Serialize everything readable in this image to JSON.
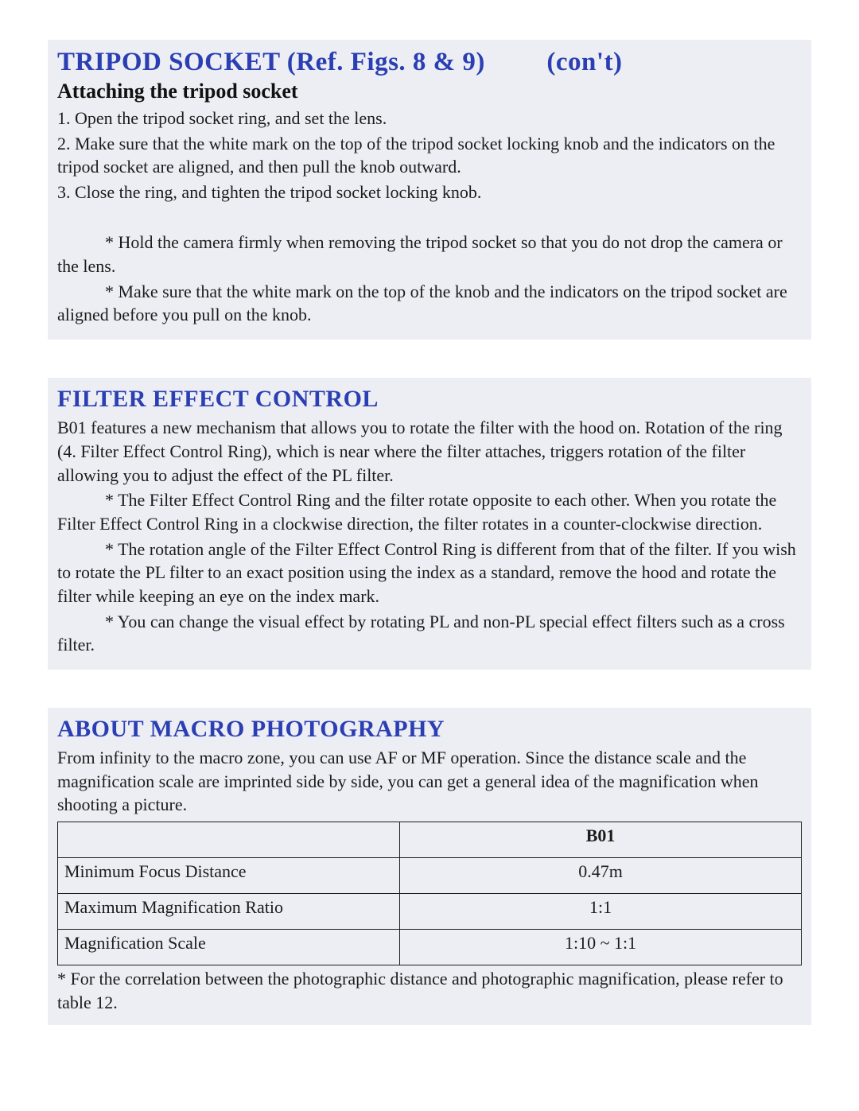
{
  "colors": {
    "section_bg": "#eceef4",
    "heading_blue": "#2b3fb3",
    "text": "#1c1c1c",
    "page_bg": "#ffffff",
    "table_border": "#1c1c1c"
  },
  "typography": {
    "h1_size_pt": 25,
    "h2_size_pt": 23,
    "subhead_size_pt": 20,
    "body_size_pt": 17
  },
  "sections": {
    "tripod": {
      "title_lead": "TRIPOD SOCKET",
      "title_ref": "(Ref. Figs. 8 & 9)",
      "title_cont": "(con't)",
      "subhead": "Attaching the tripod socket",
      "steps": [
        "1. Open the tripod socket ring, and set the lens.",
        "2. Make sure that the white mark on the top of the tripod socket locking knob and the indicators on the tripod socket are aligned, and then pull the knob outward.",
        "3. Close the ring, and tighten the tripod socket locking knob."
      ],
      "notes": [
        "* Hold the camera firmly when removing the tripod socket so that you do not drop the camera or the lens.",
        "* Make sure that the white mark on the top of the knob and the indicators on the tripod socket are aligned before you pull on the knob."
      ]
    },
    "filter": {
      "title": "FILTER EFFECT CONTROL",
      "para": "B01 features a new mechanism that allows you to rotate the filter with the hood on. Rotation of the ring (4. Filter Effect Control Ring), which is near where the filter attaches, triggers rotation of the filter allowing you to adjust the effect of the PL filter.",
      "notes": [
        "* The Filter Effect Control Ring and the filter rotate opposite to each other. When you rotate the Filter Effect Control Ring in a clockwise direction, the filter rotates in a counter-clockwise direction.",
        "* The rotation angle of the Filter Effect Control Ring is different from that of the filter. If you wish to rotate the PL filter to an exact position using the index as a standard, remove the hood and rotate the filter while keeping an eye on the index mark.",
        "* You can change the visual effect by rotating PL and non-PL special effect filters such as a cross filter."
      ]
    },
    "macro": {
      "title": "ABOUT MACRO PHOTOGRAPHY",
      "para": "From infinity to the macro zone, you can use AF or MF operation. Since the distance scale and the magnification scale are imprinted side by side, you can get a general idea of the magnification when shooting a picture.",
      "table": {
        "type": "table",
        "col_widths": [
          "46%",
          "54%"
        ],
        "header_blank": "",
        "header_model": "B01",
        "rows": [
          {
            "label": "Minimum Focus Distance",
            "value": "0.47m"
          },
          {
            "label": "Maximum Magnification Ratio",
            "value": "1:1"
          },
          {
            "label": "Magnification Scale",
            "value": "1:10 ~ 1:1"
          }
        ]
      },
      "footnote": "* For the correlation between the photographic distance and photographic magnification, please refer to table 12."
    }
  }
}
